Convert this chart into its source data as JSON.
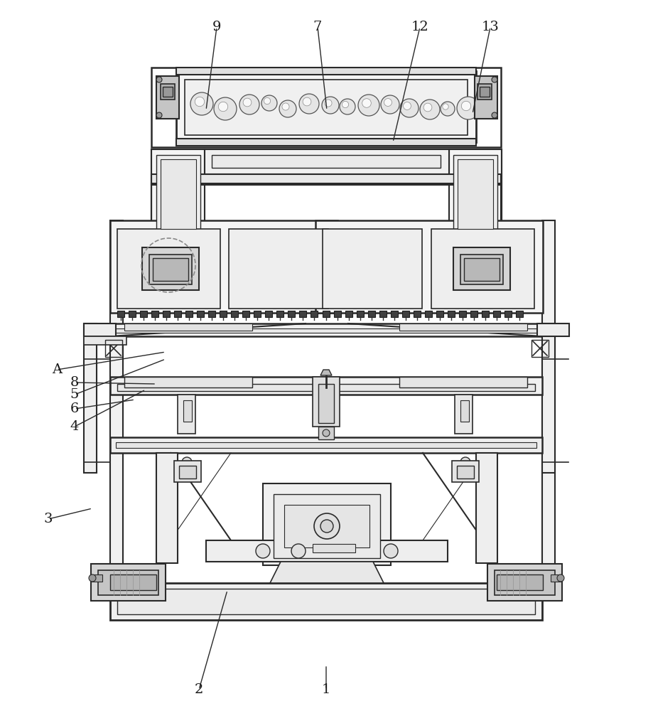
{
  "bg_color": "#ffffff",
  "dc": "#2a2a2a",
  "lc": "#3a3a3a",
  "figsize": [
    9.19,
    10.0
  ],
  "dpi": 100,
  "roller_seed": 42,
  "labels": [
    [
      "1",
      459,
      970,
      459,
      935
    ],
    [
      "2",
      280,
      970,
      320,
      830
    ],
    [
      "3",
      68,
      730,
      130,
      715
    ],
    [
      "4",
      105,
      600,
      205,
      548
    ],
    [
      "5",
      105,
      555,
      233,
      505
    ],
    [
      "6",
      105,
      575,
      190,
      562
    ],
    [
      "7",
      447,
      38,
      460,
      155
    ],
    [
      "8",
      105,
      538,
      220,
      540
    ],
    [
      "9",
      305,
      38,
      290,
      155
    ],
    [
      "12",
      591,
      38,
      553,
      200
    ],
    [
      "13",
      690,
      38,
      665,
      160
    ],
    [
      "A",
      80,
      520,
      233,
      495
    ]
  ]
}
